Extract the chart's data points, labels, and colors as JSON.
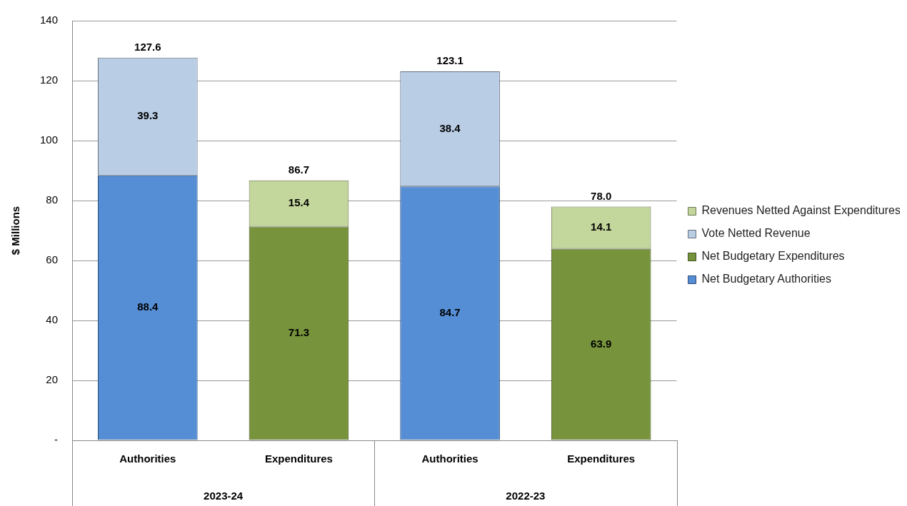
{
  "chart_data": {
    "type": "bar",
    "stacked": true,
    "ylabel": "$ Millions",
    "categories": [
      "Authorities",
      "Expenditures",
      "Authorities",
      "Expenditures"
    ],
    "series": [
      {
        "name": "Net Budgetary Authorities",
        "color": "#558ed5",
        "values": [
          88.4,
          null,
          84.7,
          null
        ]
      },
      {
        "name": "Net Budgetary Expenditures",
        "color": "#77933c",
        "values": [
          null,
          71.3,
          null,
          63.9
        ]
      },
      {
        "name": "Vote Netted Revenue",
        "color": "#b9cde5",
        "values": [
          39.3,
          null,
          38.4,
          null
        ]
      },
      {
        "name": "Revenues Netted Against Expenditures",
        "color": "#c3d69b",
        "values": [
          null,
          15.4,
          null,
          14.1
        ]
      }
    ],
    "totals": [
      "127.6",
      "86.7",
      "123.1",
      "78.0"
    ],
    "annotations": [
      "2023-24",
      "2022-23"
    ],
    "ylim": [
      0,
      140
    ],
    "yticks": [
      {
        "value": 0,
        "label": "-"
      },
      20,
      40,
      60,
      80,
      100,
      120,
      140
    ],
    "grid": "y",
    "data_labels": true,
    "legend": "right"
  }
}
